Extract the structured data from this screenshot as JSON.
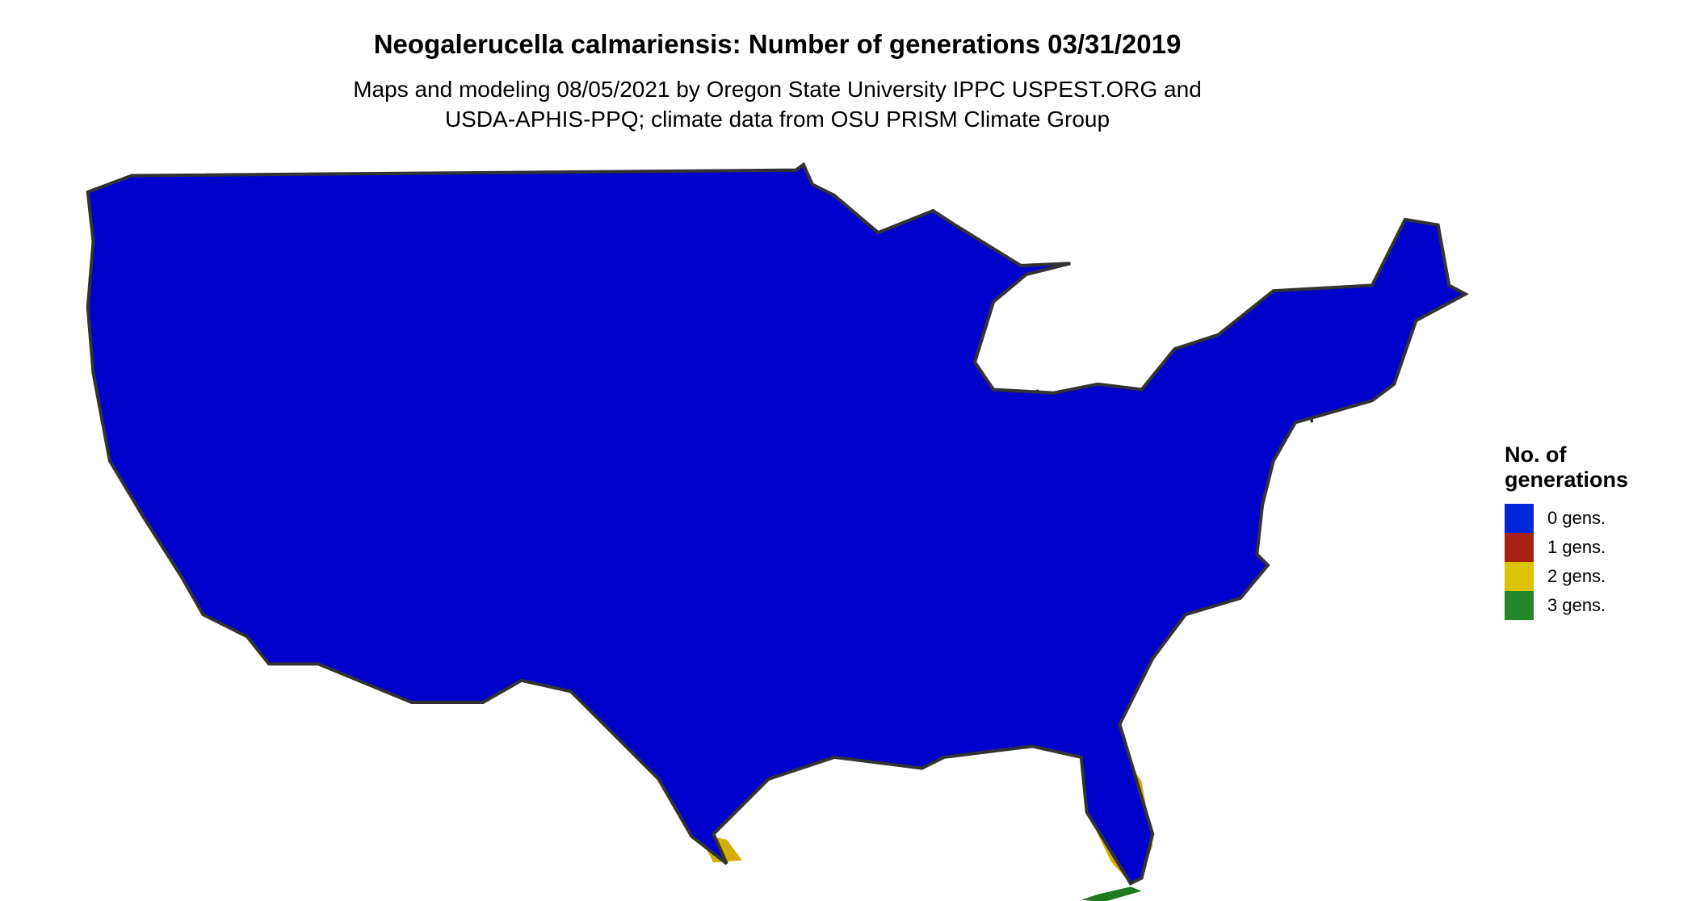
{
  "title": "Neogalerucella calmariensis: Number of generations 03/31/2019",
  "subtitle_lines": [
    "Maps and modeling 08/05/2021 by Oregon State University IPPC USPEST.ORG and",
    "USDA-APHIS-PPQ; climate data from OSU PRISM Climate Group"
  ],
  "legend": {
    "title_lines": [
      "No. of",
      "generations"
    ],
    "items": [
      {
        "label": "0 gens.",
        "color": "#0026D9"
      },
      {
        "label": "1 gens.",
        "color": "#A72014"
      },
      {
        "label": "2 gens.",
        "color": "#DBC300"
      },
      {
        "label": "3 gens.",
        "color": "#23862A"
      }
    ]
  },
  "map_colors": {
    "zero_gens_fill": "#0000CC",
    "one_gens_dark": "#8E1B17",
    "one_gens_light": "#E03A05",
    "two_gens": "#D4AE00",
    "three_gens": "#1E7A1E",
    "state_borders": "#333333"
  }
}
